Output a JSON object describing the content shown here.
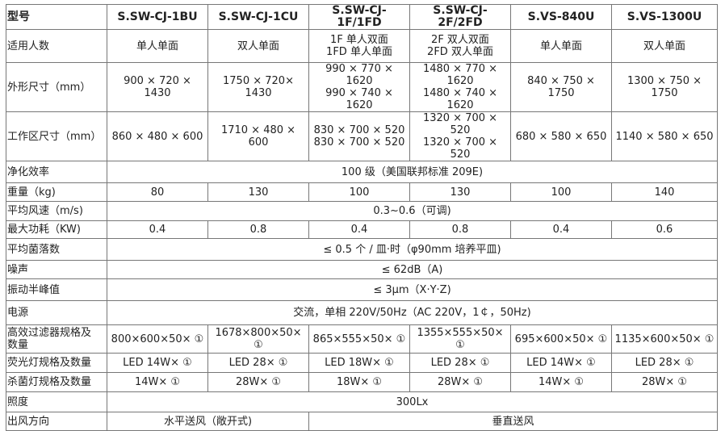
{
  "table": {
    "header": {
      "label": "型号",
      "models": [
        "S.SW-CJ-1BU",
        "S.SW-CJ-1CU",
        "S.SW-CJ-1F/1FD",
        "S.SW-CJ-2F/2FD",
        "S.VS-840U",
        "S.VS-1300U"
      ]
    },
    "rows": [
      {
        "label": "适用人数",
        "cells": [
          {
            "text": "单人单面",
            "span": 1
          },
          {
            "text": "双人单面",
            "span": 1
          },
          {
            "text": "1F 单人双面\n1FD 单人单面",
            "span": 1
          },
          {
            "text": "2F 双人双面\n2FD 双人单面",
            "span": 1
          },
          {
            "text": "单人单面",
            "span": 1
          },
          {
            "text": "双人单面",
            "span": 1
          }
        ]
      },
      {
        "label": "外形尺寸（mm）",
        "cells": [
          {
            "text": "900 × 720 × 1430",
            "span": 1
          },
          {
            "text": "1750 × 720× 1430",
            "span": 1
          },
          {
            "text": "990 × 770 × 1620\n990 × 740 × 1620",
            "span": 1
          },
          {
            "text": "1480 × 770 × 1620\n1480 × 740 × 1620",
            "span": 1
          },
          {
            "text": "840 × 750 × 1750",
            "span": 1
          },
          {
            "text": "1300 × 750 × 1750",
            "span": 1
          }
        ]
      },
      {
        "label": "工作区尺寸（mm）",
        "cells": [
          {
            "text": "860 × 480 × 600",
            "span": 1
          },
          {
            "text": "1710 × 480 × 600",
            "span": 1
          },
          {
            "text": "830 × 700 × 520\n830 × 700 × 520",
            "span": 1
          },
          {
            "text": "1320 × 700 × 520\n1320 × 700 × 520",
            "span": 1
          },
          {
            "text": "680 × 580 × 650",
            "span": 1
          },
          {
            "text": "1140 × 580 × 650",
            "span": 1
          }
        ]
      },
      {
        "label": "净化效率",
        "cells": [
          {
            "text": "100 级（美国联邦标准 209E)",
            "span": 6
          }
        ]
      },
      {
        "label": "重量（kg)",
        "cells": [
          {
            "text": "80",
            "span": 1
          },
          {
            "text": "130",
            "span": 1
          },
          {
            "text": "100",
            "span": 1
          },
          {
            "text": "130",
            "span": 1
          },
          {
            "text": "100",
            "span": 1
          },
          {
            "text": "140",
            "span": 1
          }
        ]
      },
      {
        "label": "平均风速（m/s)",
        "cells": [
          {
            "text": "0.3~0.6（可调)",
            "span": 6
          }
        ]
      },
      {
        "label": "最大功耗（KW)",
        "cells": [
          {
            "text": "0.4",
            "span": 1
          },
          {
            "text": "0.8",
            "span": 1
          },
          {
            "text": "0.4",
            "span": 1
          },
          {
            "text": "0.8",
            "span": 1
          },
          {
            "text": "0.4",
            "span": 1
          },
          {
            "text": "0.6",
            "span": 1
          }
        ]
      },
      {
        "label": "平均菌落数",
        "cells": [
          {
            "text": "≤ 0.5 个 / 皿·时（φ90mm 培养平皿)",
            "span": 6
          }
        ]
      },
      {
        "label": "噪声",
        "cells": [
          {
            "text": "≤ 62dB（A)",
            "span": 6
          }
        ]
      },
      {
        "label": "振动半峰值",
        "cells": [
          {
            "text": "≤ 3μm（X·Y·Z)",
            "span": 6
          }
        ]
      },
      {
        "label": "电源",
        "cells": [
          {
            "text": "交流，单相 220V/50Hz（AC 220V，1￠，50Hz)",
            "span": 6
          }
        ]
      },
      {
        "label": "高效过滤器规格及\n数量",
        "cells": [
          {
            "text": "800×600×50× ①",
            "span": 1
          },
          {
            "text": "1678×800×50× ①",
            "span": 1
          },
          {
            "text": "865×555×50× ①",
            "span": 1
          },
          {
            "text": "1355×555×50× ①",
            "span": 1
          },
          {
            "text": "695×600×50× ①",
            "span": 1
          },
          {
            "text": "1135×600×50× ①",
            "span": 1
          }
        ]
      },
      {
        "label": "荧光灯规格及数量",
        "cells": [
          {
            "text": "LED 14W× ①",
            "span": 1
          },
          {
            "text": "LED 28× ①",
            "span": 1
          },
          {
            "text": "LED 18W× ①",
            "span": 1
          },
          {
            "text": "LED 28× ①",
            "span": 1
          },
          {
            "text": "LED 14W× ①",
            "span": 1
          },
          {
            "text": "LED 28× ①",
            "span": 1
          }
        ]
      },
      {
        "label": "杀菌灯规格及数量",
        "cells": [
          {
            "text": "14W× ①",
            "span": 1
          },
          {
            "text": "28W× ①",
            "span": 1
          },
          {
            "text": "18W× ①",
            "span": 1
          },
          {
            "text": "28W× ①",
            "span": 1
          },
          {
            "text": "14W× ①",
            "span": 1
          },
          {
            "text": "28W× ①",
            "span": 1
          }
        ]
      },
      {
        "label": "照度",
        "cells": [
          {
            "text": "300Lx",
            "span": 6
          }
        ]
      },
      {
        "label": "出风方向",
        "cells": [
          {
            "text": "水平送风（敞开式)",
            "span": 2
          },
          {
            "text": "垂直送风",
            "span": 4
          }
        ]
      }
    ]
  }
}
